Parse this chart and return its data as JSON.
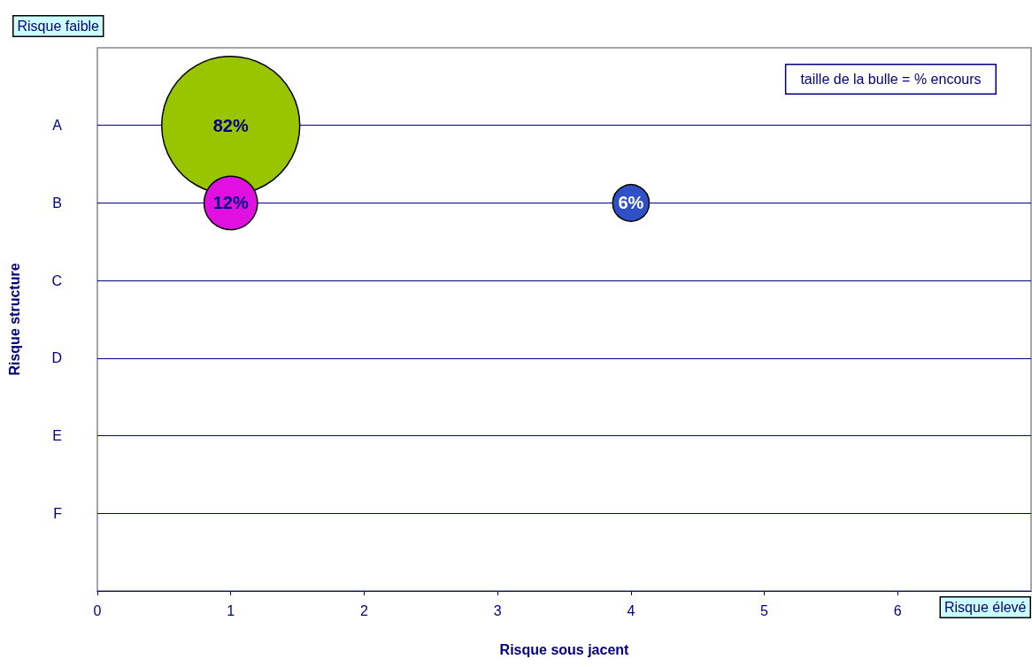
{
  "chart_data": {
    "type": "bubble",
    "orientation": "horizontal",
    "xlabel": "Risque sous jacent",
    "ylabel": "Risque structure",
    "annotations": [
      "Risque faible",
      "Risque élevé",
      "taille de la bulle = % encours",
      "82%",
      "12%",
      "6%"
    ],
    "categories": [
      null,
      "A",
      "B",
      "C",
      "D",
      "E",
      "F",
      null
    ],
    "series": [
      {
        "values": [
          null,
          1,
          1,
          null,
          null,
          null,
          null,
          null
        ],
        "sizes": [
          null,
          1,
          0.15,
          null,
          null,
          null,
          null,
          null
        ],
        "colors": [
          null,
          "#99c400",
          "#e010e0",
          null,
          null,
          null,
          null,
          null
        ]
      },
      {
        "values": [
          null,
          null,
          4,
          null,
          null,
          null,
          null,
          null
        ],
        "sizes": [
          null,
          null,
          0.07,
          null,
          null,
          null,
          null,
          null
        ],
        "color": "#3050c8"
      }
    ],
    "xlim": [
      0,
      7
    ],
    "xticks": [
      0,
      1,
      2,
      3,
      4,
      5,
      6
    ],
    "grid": "y",
    "marker": "circle"
  }
}
